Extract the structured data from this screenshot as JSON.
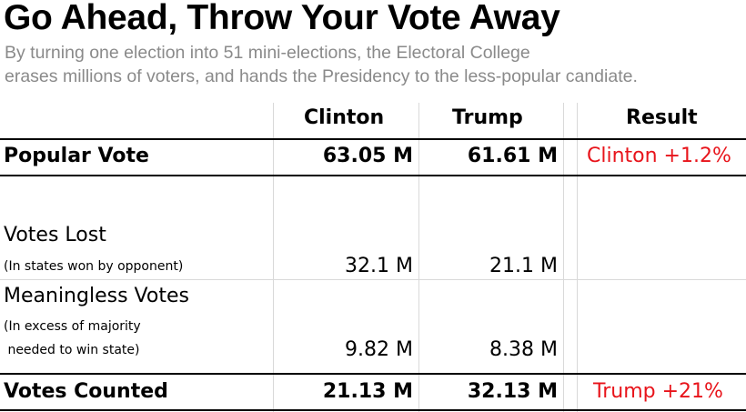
{
  "title": "Go Ahead, Throw Your Vote Away",
  "subtitle_line1": "By turning one election into 51 mini-elections, the Electoral College",
  "subtitle_line2": "erases millions of voters, and hands the Presidency to the less-popular candiate.",
  "table": {
    "headers": {
      "clinton": "Clinton",
      "trump": "Trump",
      "result": "Result"
    },
    "popular_vote": {
      "label": "Popular Vote",
      "clinton": "63.05 M",
      "trump": "61.61 M",
      "result": "Clinton +1.2%"
    },
    "votes_lost": {
      "label": "Votes Lost",
      "note": "(In states won by opponent)",
      "clinton": "32.1 M",
      "trump": "21.1 M"
    },
    "meaningless_votes": {
      "label": "Meaningless Votes",
      "note_line1": "(In excess of majority",
      "note_line2": " needed to win state)",
      "clinton": "9.82 M",
      "trump": "8.38 M"
    },
    "votes_counted": {
      "label": "Votes Counted",
      "clinton": "21.13 M",
      "trump": "32.13 M",
      "result": "Trump +21%"
    }
  },
  "colors": {
    "result_text": "#e8141b",
    "subtitle_text": "#8a8a8a",
    "grid": "#d9d9d9"
  }
}
